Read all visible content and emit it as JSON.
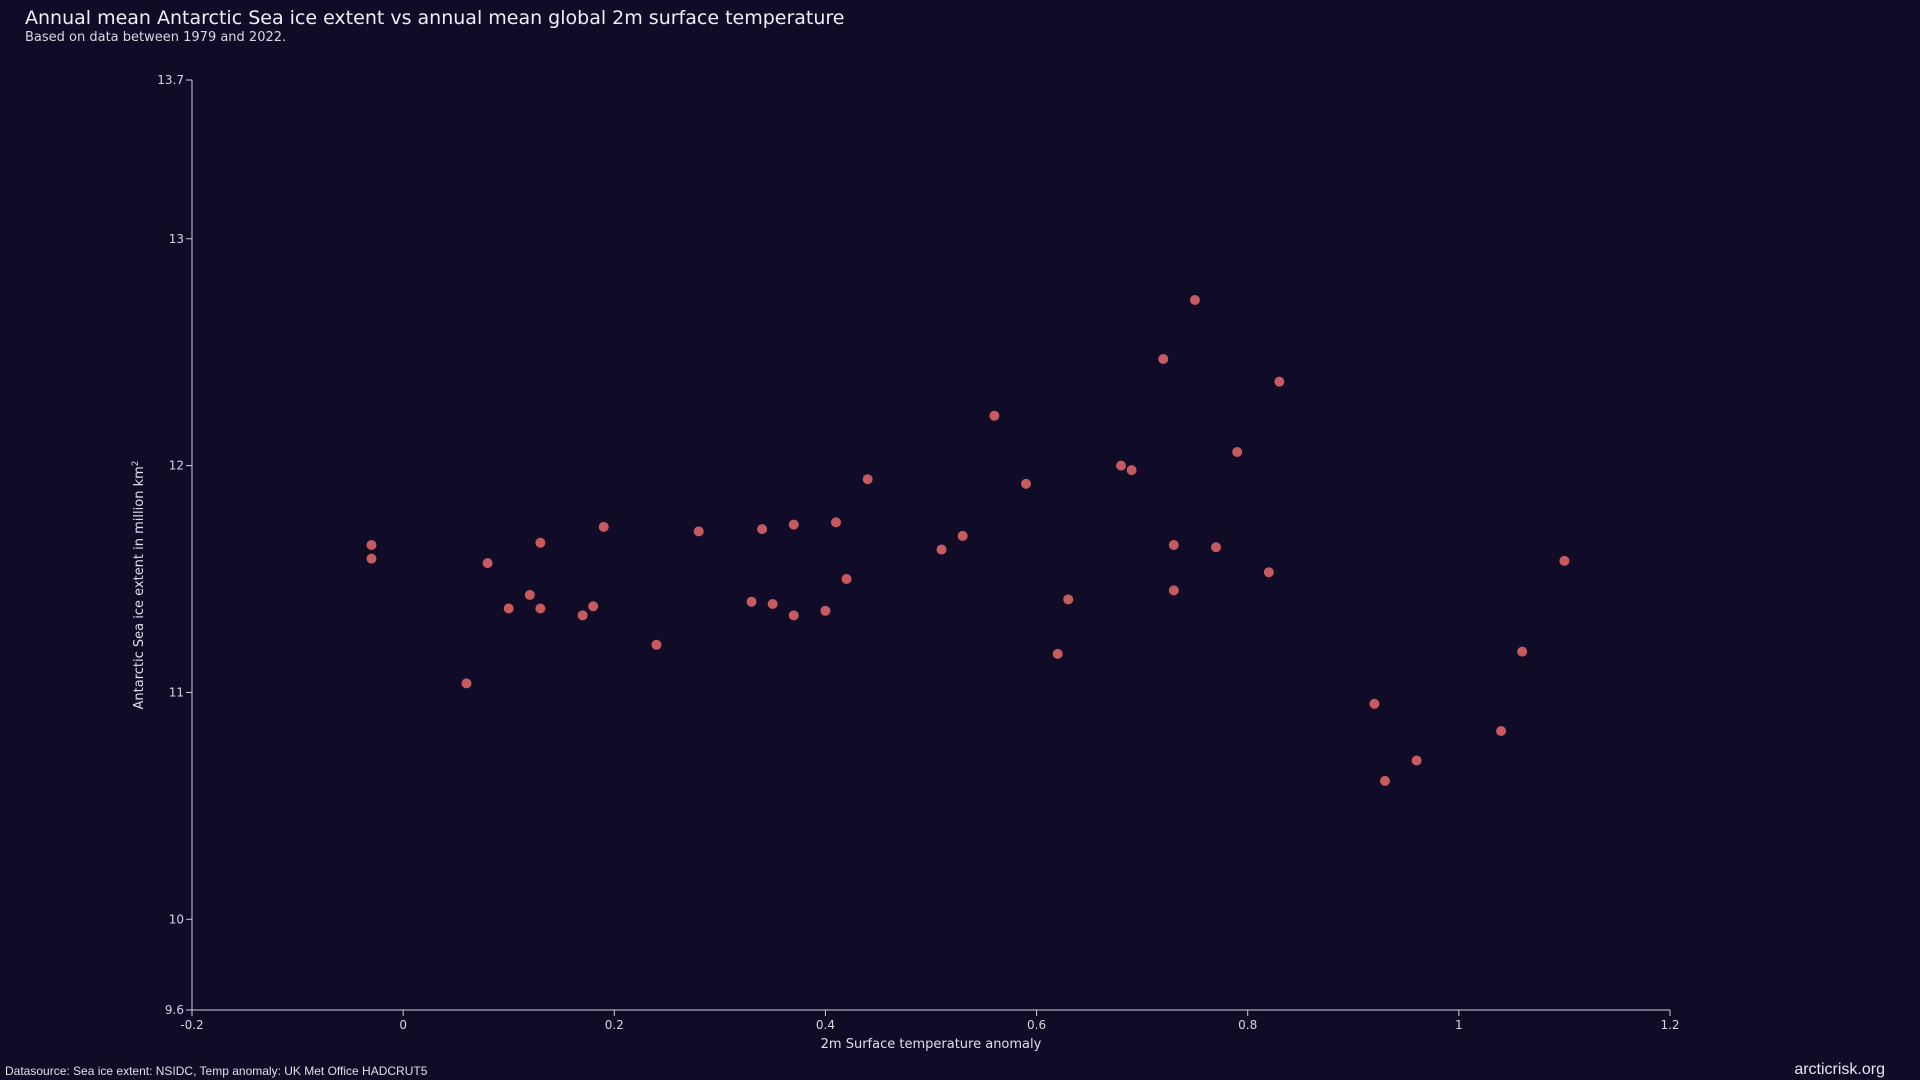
{
  "header": {
    "title": "Annual mean Antarctic Sea ice extent vs annual mean global 2m surface temperature",
    "subtitle": "Based on data between 1979 and 2022."
  },
  "footer": {
    "source": "Datasource: Sea ice extent: NSIDC, Temp anomaly: UK Met Office HADCRUT5",
    "brand": "arcticrisk.org"
  },
  "colors": {
    "background": "#100c28",
    "point": "#c75a5f",
    "axis": "#cfcde0"
  },
  "chart_data": {
    "type": "scatter",
    "title": "Annual mean Antarctic Sea ice extent vs annual mean global 2m surface temperature",
    "subtitle": "Based on data between 1979 and 2022.",
    "xlabel": "2m Surface temperature anomaly",
    "ylabel_text": "Antarctic Sea ice extent in million km",
    "ylabel_sup": "2",
    "xlim": [
      -0.2,
      1.2
    ],
    "ylim": [
      9.6,
      13.7
    ],
    "x_ticks": [
      -0.2,
      0,
      0.2,
      0.4,
      0.6,
      0.8,
      1,
      1.2
    ],
    "x_tick_labels": [
      "-0.2",
      "0",
      "0.2",
      "0.4",
      "0.6",
      "0.8",
      "1",
      "1.2"
    ],
    "y_ticks": [
      9.6,
      10,
      11,
      12,
      13,
      13.7
    ],
    "y_tick_labels": [
      "9.6",
      "10",
      "11",
      "12",
      "13",
      "13.7"
    ],
    "grid": false,
    "points": [
      {
        "x": -0.03,
        "y": 11.65
      },
      {
        "x": -0.03,
        "y": 11.59
      },
      {
        "x": 0.06,
        "y": 11.04
      },
      {
        "x": 0.08,
        "y": 11.57
      },
      {
        "x": 0.1,
        "y": 11.37
      },
      {
        "x": 0.12,
        "y": 11.43
      },
      {
        "x": 0.13,
        "y": 11.37
      },
      {
        "x": 0.13,
        "y": 11.66
      },
      {
        "x": 0.17,
        "y": 11.34
      },
      {
        "x": 0.18,
        "y": 11.38
      },
      {
        "x": 0.19,
        "y": 11.73
      },
      {
        "x": 0.24,
        "y": 11.21
      },
      {
        "x": 0.28,
        "y": 11.71
      },
      {
        "x": 0.33,
        "y": 11.4
      },
      {
        "x": 0.34,
        "y": 11.72
      },
      {
        "x": 0.35,
        "y": 11.39
      },
      {
        "x": 0.37,
        "y": 11.34
      },
      {
        "x": 0.37,
        "y": 11.74
      },
      {
        "x": 0.4,
        "y": 11.36
      },
      {
        "x": 0.41,
        "y": 11.75
      },
      {
        "x": 0.42,
        "y": 11.5
      },
      {
        "x": 0.44,
        "y": 11.94
      },
      {
        "x": 0.51,
        "y": 11.63
      },
      {
        "x": 0.53,
        "y": 11.69
      },
      {
        "x": 0.56,
        "y": 12.22
      },
      {
        "x": 0.59,
        "y": 11.92
      },
      {
        "x": 0.62,
        "y": 11.17
      },
      {
        "x": 0.63,
        "y": 11.41
      },
      {
        "x": 0.68,
        "y": 12.0
      },
      {
        "x": 0.69,
        "y": 11.98
      },
      {
        "x": 0.72,
        "y": 12.47
      },
      {
        "x": 0.73,
        "y": 11.65
      },
      {
        "x": 0.73,
        "y": 11.45
      },
      {
        "x": 0.75,
        "y": 12.73
      },
      {
        "x": 0.77,
        "y": 11.64
      },
      {
        "x": 0.79,
        "y": 12.06
      },
      {
        "x": 0.82,
        "y": 11.53
      },
      {
        "x": 0.83,
        "y": 12.37
      },
      {
        "x": 0.92,
        "y": 10.95
      },
      {
        "x": 0.93,
        "y": 10.61
      },
      {
        "x": 0.96,
        "y": 10.7
      },
      {
        "x": 1.04,
        "y": 10.83
      },
      {
        "x": 1.06,
        "y": 11.18
      },
      {
        "x": 1.1,
        "y": 11.58
      }
    ]
  }
}
